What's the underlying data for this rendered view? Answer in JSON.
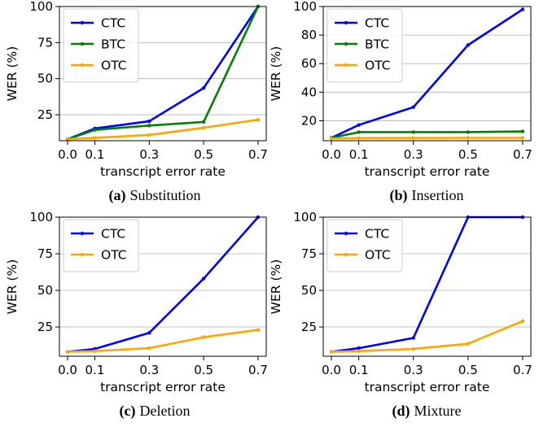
{
  "chart_data": [
    {
      "type": "line",
      "caption": {
        "letter": "(a)",
        "text": "Substitution"
      },
      "xlabel": "transcript error rate",
      "ylabel": "WER (%)",
      "x": [
        0.0,
        0.1,
        0.3,
        0.5,
        0.7
      ],
      "xticklabels": [
        "0.0",
        "0.1",
        "0.3",
        "0.5",
        "0.7"
      ],
      "ylim": [
        7,
        100
      ],
      "yticks": [
        25,
        50,
        75,
        100
      ],
      "grid": "horizontal",
      "legend": "top-left",
      "series": [
        {
          "name": "CTC",
          "color": "#0000ff",
          "values": [
            8,
            15.5,
            20.5,
            43.5,
            100
          ]
        },
        {
          "name": "BTC",
          "color": "#008000",
          "values": [
            8,
            14.5,
            17.5,
            20,
            100
          ]
        },
        {
          "name": "OTC",
          "color": "#ffa500",
          "values": [
            8,
            9,
            11,
            16,
            21.5
          ]
        }
      ]
    },
    {
      "type": "line",
      "caption": {
        "letter": "(b)",
        "text": "Insertion"
      },
      "xlabel": "transcript error rate",
      "ylabel": "WER (%)",
      "x": [
        0.0,
        0.1,
        0.3,
        0.5,
        0.7
      ],
      "xticklabels": [
        "0.0",
        "0.1",
        "0.3",
        "0.5",
        "0.7"
      ],
      "ylim": [
        6,
        100
      ],
      "yticks": [
        20,
        40,
        60,
        80,
        100
      ],
      "grid": "horizontal",
      "legend": "top-left",
      "series": [
        {
          "name": "CTC",
          "color": "#0000ff",
          "values": [
            8,
            17,
            29.5,
            73,
            98
          ]
        },
        {
          "name": "BTC",
          "color": "#008000",
          "values": [
            8,
            12,
            12,
            12,
            12.5
          ]
        },
        {
          "name": "OTC",
          "color": "#ffa500",
          "values": [
            7.5,
            7.8,
            7.9,
            8,
            8
          ]
        }
      ]
    },
    {
      "type": "line",
      "caption": {
        "letter": "(c)",
        "text": "Deletion"
      },
      "xlabel": "transcript error rate",
      "ylabel": "WER (%)",
      "x": [
        0.0,
        0.1,
        0.3,
        0.5,
        0.7
      ],
      "xticklabels": [
        "0.0",
        "0.1",
        "0.3",
        "0.5",
        "0.7"
      ],
      "ylim": [
        5,
        100
      ],
      "yticks": [
        25,
        50,
        75,
        100
      ],
      "grid": "horizontal",
      "legend": "top-left",
      "series": [
        {
          "name": "CTC",
          "color": "#0000ff",
          "values": [
            8,
            10,
            21,
            58,
            100
          ]
        },
        {
          "name": "OTC",
          "color": "#ffa500",
          "values": [
            8,
            8.5,
            10.5,
            18,
            23
          ]
        }
      ]
    },
    {
      "type": "line",
      "caption": {
        "letter": "(d)",
        "text": "Mixture"
      },
      "xlabel": "transcript error rate",
      "ylabel": "WER (%)",
      "x": [
        0.0,
        0.1,
        0.3,
        0.5,
        0.7
      ],
      "xticklabels": [
        "0.0",
        "0.1",
        "0.3",
        "0.5",
        "0.7"
      ],
      "ylim": [
        5,
        100
      ],
      "yticks": [
        25,
        50,
        75,
        100
      ],
      "grid": "horizontal",
      "legend": "top-left",
      "series": [
        {
          "name": "CTC",
          "color": "#0000ff",
          "values": [
            8,
            10.5,
            17.5,
            100,
            100
          ]
        },
        {
          "name": "OTC",
          "color": "#ffa500",
          "values": [
            8,
            8.5,
            10,
            13.5,
            29
          ]
        }
      ]
    }
  ]
}
